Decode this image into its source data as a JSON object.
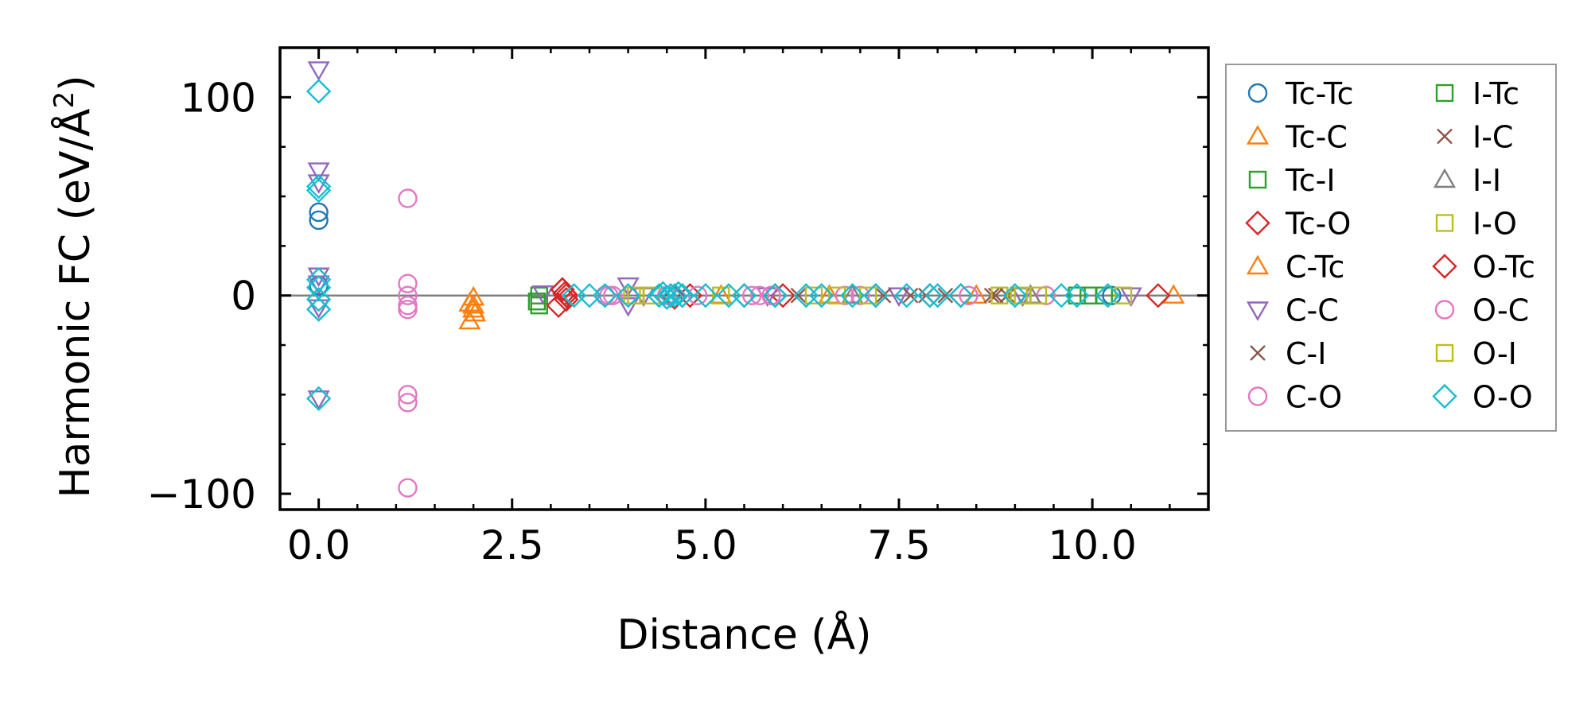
{
  "chart_data": {
    "type": "scatter",
    "title": "",
    "xlabel": "Distance (Å)",
    "ylabel_main": "Harmonic FC (eV/Å",
    "ylabel_sup": "2",
    "ylabel_close": ")",
    "xlim": [
      -0.5,
      11.5
    ],
    "ylim": [
      -108,
      125
    ],
    "xticks": [
      0.0,
      2.5,
      5.0,
      7.5,
      10.0
    ],
    "xtick_labels": [
      "0.0",
      "2.5",
      "5.0",
      "7.5",
      "10.0"
    ],
    "yticks": [
      -100,
      0,
      100
    ],
    "ytick_labels": [
      "−100",
      "0",
      "100"
    ],
    "zero_line": true,
    "legend_position": "outside-right",
    "colors": {
      "blue": "#1f77b4",
      "orange": "#ff7f0e",
      "green": "#2ca02c",
      "red": "#d62728",
      "purple": "#9467bd",
      "brown": "#8c564b",
      "pink": "#e377c2",
      "gray": "#7f7f7f",
      "olive": "#bcbd22",
      "cyan": "#17becf"
    },
    "series": [
      {
        "name": "Tc-Tc",
        "marker": "circle",
        "color": "#1f77b4",
        "x": [
          0.0,
          0.0,
          0.0,
          10.25
        ],
        "y": [
          42,
          38,
          5,
          0
        ]
      },
      {
        "name": "Tc-C",
        "marker": "triangle-up",
        "color": "#ff7f0e",
        "x": [
          2.0,
          2.0,
          2.02,
          11.05
        ],
        "y": [
          -1,
          -5,
          -9,
          0
        ]
      },
      {
        "name": "Tc-I",
        "marker": "square",
        "color": "#2ca02c",
        "x": [
          2.85,
          2.85,
          9.8,
          10.15
        ],
        "y": [
          0,
          -5,
          0,
          0
        ]
      },
      {
        "name": "Tc-O",
        "marker": "diamond",
        "color": "#d62728",
        "x": [
          3.1,
          3.15,
          3.18,
          3.2,
          4.55,
          4.6,
          4.8,
          5.5,
          6.0,
          7.2,
          8.3
        ],
        "y": [
          -5,
          3,
          1,
          -2,
          0,
          -1,
          0,
          0,
          0,
          0,
          0
        ]
      },
      {
        "name": "C-Tc",
        "marker": "triangle-up",
        "color": "#ff7f0e",
        "x": [
          1.95,
          1.95,
          2.0,
          5.2,
          6.6,
          8.5
        ],
        "y": [
          -13,
          -4,
          -7,
          0,
          0,
          0
        ]
      },
      {
        "name": "C-C",
        "marker": "triangle-down",
        "color": "#9467bd",
        "x": [
          0.0,
          0.0,
          0.0,
          0.0,
          0.0,
          0.0,
          0.0,
          2.9,
          4.0,
          4.0,
          4.2,
          5.8,
          7.5,
          9.1,
          10.5
        ],
        "y": [
          114,
          63,
          57,
          10,
          6,
          -6,
          -52,
          1,
          5,
          -5,
          0,
          0,
          0,
          0,
          0
        ]
      },
      {
        "name": "C-I",
        "marker": "x",
        "color": "#8c564b",
        "x": [
          6.2,
          7.3,
          7.65,
          8.1,
          8.7,
          8.9
        ],
        "y": [
          0,
          0,
          0,
          0,
          0,
          0
        ]
      },
      {
        "name": "C-O",
        "marker": "circle",
        "color": "#e377c2",
        "x": [
          1.15,
          1.15,
          1.15,
          1.15,
          1.15,
          1.15,
          1.15,
          1.15,
          3.7,
          3.8,
          4.9,
          5.7,
          5.85,
          7.0,
          9.4
        ],
        "y": [
          49,
          6,
          -5,
          -7,
          -50,
          -54,
          -97,
          0,
          0,
          0,
          0,
          0,
          0,
          0,
          0
        ]
      },
      {
        "name": "I-Tc",
        "marker": "square",
        "color": "#2ca02c",
        "x": [
          2.82,
          9.95
        ],
        "y": [
          -3,
          0
        ]
      },
      {
        "name": "I-C",
        "marker": "x",
        "color": "#8c564b",
        "x": [
          7.85,
          8.75
        ],
        "y": [
          0,
          0
        ]
      },
      {
        "name": "I-I",
        "marker": "triangle-up",
        "color": "#7f7f7f",
        "x": [
          6.9,
          9.2
        ],
        "y": [
          0,
          0
        ]
      },
      {
        "name": "I-O",
        "marker": "square",
        "color": "#bcbd22",
        "x": [
          4.05,
          4.3,
          5.2,
          6.4,
          7.1,
          9.1,
          9.3,
          10.4
        ],
        "y": [
          0,
          0,
          0,
          0,
          0,
          0,
          0,
          0
        ]
      },
      {
        "name": "O-Tc",
        "marker": "diamond",
        "color": "#d62728",
        "x": [
          3.15,
          3.2,
          4.7,
          5.9,
          7.9,
          10.85
        ],
        "y": [
          3,
          0,
          0,
          0,
          0,
          0
        ]
      },
      {
        "name": "O-C",
        "marker": "circle",
        "color": "#e377c2",
        "x": [
          3.75,
          4.5,
          5.6,
          6.8,
          8.4
        ],
        "y": [
          0,
          0,
          0,
          0,
          0
        ]
      },
      {
        "name": "O-I",
        "marker": "square",
        "color": "#bcbd22",
        "x": [
          4.1,
          6.7,
          8.8,
          9.05
        ],
        "y": [
          0,
          0,
          0,
          0
        ]
      },
      {
        "name": "O-O",
        "marker": "diamond",
        "color": "#17becf",
        "x": [
          0.0,
          0.0,
          0.0,
          0.0,
          0.0,
          0.0,
          0.0,
          0.0,
          3.3,
          3.5,
          3.7,
          4.0,
          4.4,
          4.45,
          4.5,
          4.55,
          4.6,
          4.65,
          4.7,
          5.0,
          5.3,
          5.5,
          5.9,
          6.3,
          6.5,
          6.9,
          7.2,
          7.6,
          7.9,
          8.0,
          8.3,
          9.0,
          9.6,
          9.8,
          10.2
        ],
        "y": [
          103,
          55,
          53,
          8,
          4,
          -2,
          -7,
          -52,
          0,
          0,
          0,
          0,
          0,
          1,
          -1,
          0,
          0,
          1,
          0,
          0,
          0,
          0,
          0,
          0,
          0,
          0,
          0,
          0,
          0,
          0,
          0,
          0,
          0,
          0,
          0
        ]
      }
    ],
    "legend_columns": [
      [
        "Tc-Tc",
        "Tc-C",
        "Tc-I",
        "Tc-O",
        "C-Tc",
        "C-C",
        "C-I",
        "C-O"
      ],
      [
        "I-Tc",
        "I-C",
        "I-I",
        "I-O",
        "O-Tc",
        "O-C",
        "O-I",
        "O-O"
      ]
    ]
  }
}
